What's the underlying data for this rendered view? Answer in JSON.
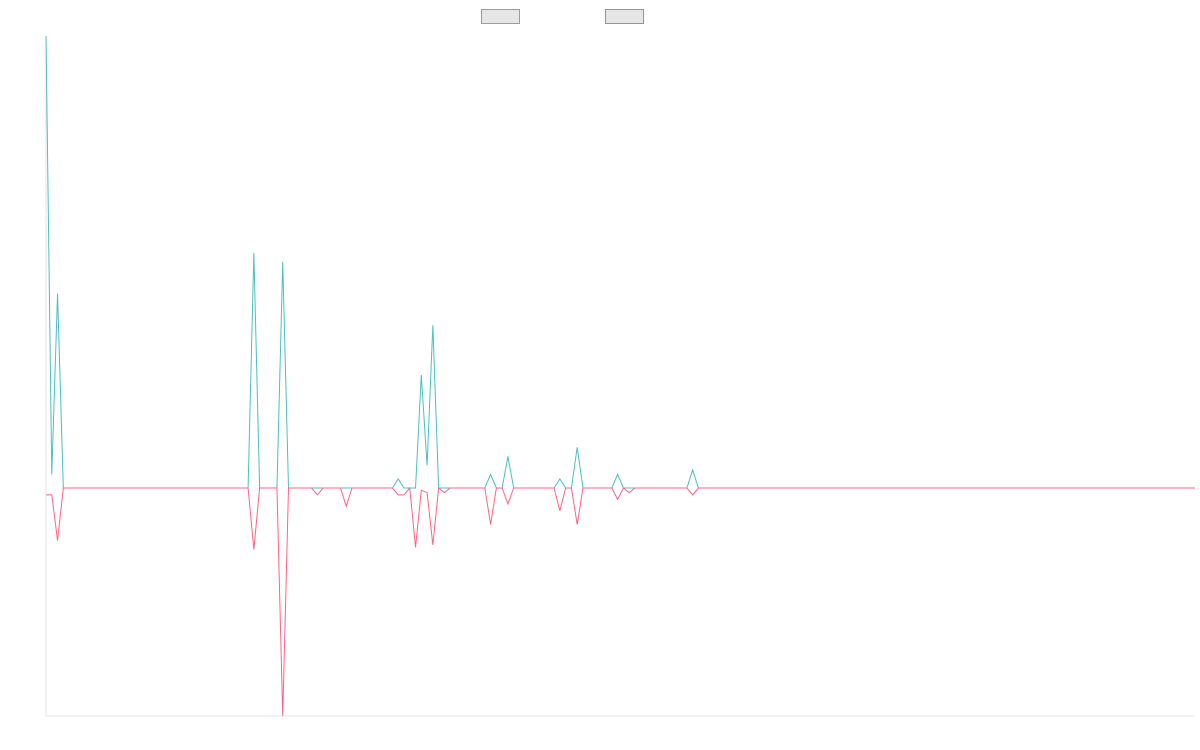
{
  "chart_data": {
    "type": "line",
    "title": "",
    "xlabel": "",
    "ylabel": "",
    "x_count": 200,
    "ylim": [
      -0.5,
      1.0
    ],
    "grid": false,
    "legend": "top-center",
    "series": [
      {
        "color": "#4bc0c0",
        "points": [
          [
            0,
            1.0
          ],
          [
            1,
            0.03
          ],
          [
            2,
            0.43
          ],
          [
            3,
            0.0
          ],
          [
            35,
            0.0
          ],
          [
            36,
            0.52
          ],
          [
            37,
            0.0
          ],
          [
            40,
            0.0
          ],
          [
            41,
            0.5
          ],
          [
            42,
            0.0
          ],
          [
            46,
            0.0
          ],
          [
            47,
            0.0
          ],
          [
            51,
            0.0
          ],
          [
            52,
            0.0
          ],
          [
            60,
            0.0
          ],
          [
            61,
            0.02
          ],
          [
            62,
            0.0
          ],
          [
            64,
            0.0
          ],
          [
            65,
            0.25
          ],
          [
            66,
            0.05
          ],
          [
            67,
            0.36
          ],
          [
            68,
            0.0
          ],
          [
            76,
            0.0
          ],
          [
            77,
            0.03
          ],
          [
            78,
            0.0
          ],
          [
            79,
            0.0
          ],
          [
            80,
            0.07
          ],
          [
            81,
            0.0
          ],
          [
            88,
            0.0
          ],
          [
            89,
            0.02
          ],
          [
            90,
            0.0
          ],
          [
            91,
            0.0
          ],
          [
            92,
            0.09
          ],
          [
            93,
            0.0
          ],
          [
            95,
            0.0
          ],
          [
            96,
            0.0
          ],
          [
            98,
            0.0
          ],
          [
            99,
            0.03
          ],
          [
            100,
            0.0
          ],
          [
            111,
            0.0
          ],
          [
            112,
            0.04
          ],
          [
            113,
            0.0
          ],
          [
            199,
            0.0
          ]
        ]
      },
      {
        "color": "#ff6384",
        "points": [
          [
            0,
            -0.015
          ],
          [
            1,
            -0.015
          ],
          [
            2,
            -0.115
          ],
          [
            3,
            0.0
          ],
          [
            35,
            0.0
          ],
          [
            36,
            -0.135
          ],
          [
            37,
            0.0
          ],
          [
            40,
            0.0
          ],
          [
            41,
            -0.5
          ],
          [
            42,
            0.0
          ],
          [
            46,
            0.0
          ],
          [
            47,
            -0.015
          ],
          [
            48,
            0.0
          ],
          [
            51,
            0.0
          ],
          [
            52,
            -0.04
          ],
          [
            53,
            0.0
          ],
          [
            60,
            0.0
          ],
          [
            61,
            -0.015
          ],
          [
            62,
            -0.015
          ],
          [
            63,
            0.0
          ],
          [
            64,
            -0.13
          ],
          [
            65,
            -0.005
          ],
          [
            66,
            -0.01
          ],
          [
            67,
            -0.125
          ],
          [
            68,
            0.0
          ],
          [
            69,
            -0.01
          ],
          [
            70,
            0.0
          ],
          [
            76,
            0.0
          ],
          [
            77,
            -0.08
          ],
          [
            78,
            0.0
          ],
          [
            79,
            0.0
          ],
          [
            80,
            -0.035
          ],
          [
            81,
            0.0
          ],
          [
            88,
            0.0
          ],
          [
            89,
            -0.05
          ],
          [
            90,
            0.0
          ],
          [
            91,
            0.0
          ],
          [
            92,
            -0.08
          ],
          [
            93,
            0.0
          ],
          [
            98,
            0.0
          ],
          [
            99,
            -0.025
          ],
          [
            100,
            0.0
          ],
          [
            101,
            -0.01
          ],
          [
            102,
            0.0
          ],
          [
            111,
            0.0
          ],
          [
            112,
            -0.015
          ],
          [
            113,
            0.0
          ],
          [
            199,
            0.0
          ]
        ]
      }
    ]
  }
}
